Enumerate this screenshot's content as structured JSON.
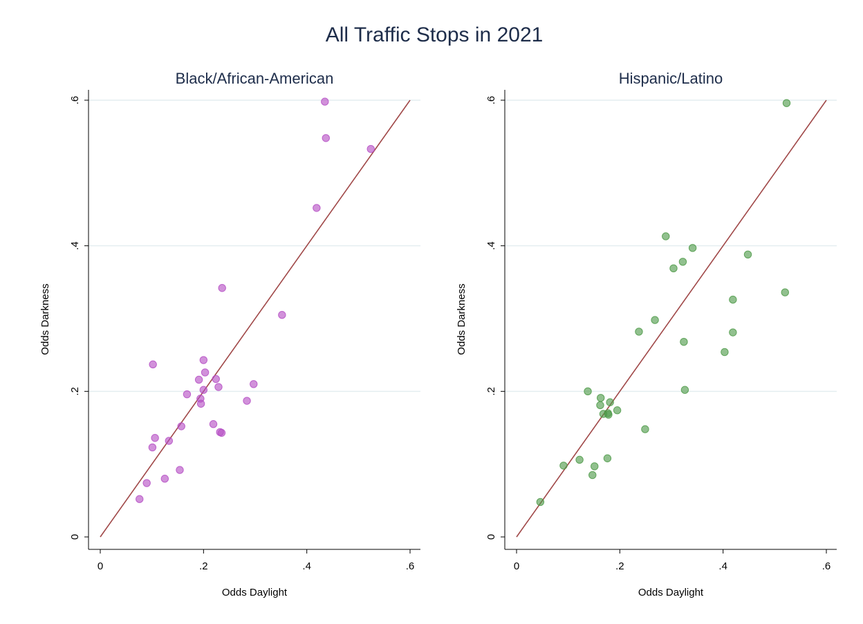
{
  "figure": {
    "title": "All Traffic Stops in 2021",
    "reference_line_color": "#a04848",
    "grid_color": "#e4eef0"
  },
  "chart_data": [
    {
      "type": "scatter",
      "title": "Black/African-American",
      "xlabel": "Odds Daylight",
      "ylabel": "Odds Darkness",
      "xlim": [
        0,
        0.6
      ],
      "ylim": [
        0,
        0.6
      ],
      "xticks": [
        0,
        0.2,
        0.4,
        0.6
      ],
      "xtick_labels": [
        "0",
        ".2",
        ".4",
        ".6"
      ],
      "yticks": [
        0,
        0.2,
        0.4,
        0.6
      ],
      "ytick_labels": [
        "0",
        ".2",
        ".4",
        ".6"
      ],
      "grid": true,
      "reference_line": {
        "from": [
          0,
          0
        ],
        "to": [
          0.6,
          0.6
        ]
      },
      "marker_color": "#b54ec4",
      "points": [
        {
          "x": 0.435,
          "y": 0.598
        },
        {
          "x": 0.437,
          "y": 0.548
        },
        {
          "x": 0.524,
          "y": 0.533
        },
        {
          "x": 0.419,
          "y": 0.452
        },
        {
          "x": 0.236,
          "y": 0.342
        },
        {
          "x": 0.352,
          "y": 0.305
        },
        {
          "x": 0.102,
          "y": 0.237
        },
        {
          "x": 0.2,
          "y": 0.243
        },
        {
          "x": 0.203,
          "y": 0.226
        },
        {
          "x": 0.191,
          "y": 0.216
        },
        {
          "x": 0.224,
          "y": 0.217
        },
        {
          "x": 0.229,
          "y": 0.206
        },
        {
          "x": 0.297,
          "y": 0.21
        },
        {
          "x": 0.2,
          "y": 0.202
        },
        {
          "x": 0.168,
          "y": 0.196
        },
        {
          "x": 0.194,
          "y": 0.19
        },
        {
          "x": 0.195,
          "y": 0.183
        },
        {
          "x": 0.284,
          "y": 0.187
        },
        {
          "x": 0.157,
          "y": 0.152
        },
        {
          "x": 0.219,
          "y": 0.155
        },
        {
          "x": 0.232,
          "y": 0.144
        },
        {
          "x": 0.235,
          "y": 0.143
        },
        {
          "x": 0.106,
          "y": 0.136
        },
        {
          "x": 0.133,
          "y": 0.132
        },
        {
          "x": 0.101,
          "y": 0.123
        },
        {
          "x": 0.154,
          "y": 0.092
        },
        {
          "x": 0.125,
          "y": 0.08
        },
        {
          "x": 0.09,
          "y": 0.074
        },
        {
          "x": 0.076,
          "y": 0.052
        }
      ]
    },
    {
      "type": "scatter",
      "title": "Hispanic/Latino",
      "xlabel": "Odds Daylight",
      "ylabel": "Odds Darkness",
      "xlim": [
        0,
        0.6
      ],
      "ylim": [
        0,
        0.6
      ],
      "xticks": [
        0,
        0.2,
        0.4,
        0.6
      ],
      "xtick_labels": [
        "0",
        ".2",
        ".4",
        ".6"
      ],
      "yticks": [
        0,
        0.2,
        0.4,
        0.6
      ],
      "ytick_labels": [
        "0",
        ".2",
        ".4",
        ".6"
      ],
      "grid": true,
      "reference_line": {
        "from": [
          0,
          0
        ],
        "to": [
          0.6,
          0.6
        ]
      },
      "marker_color": "#4e9a48",
      "points": [
        {
          "x": 0.523,
          "y": 0.596
        },
        {
          "x": 0.289,
          "y": 0.413
        },
        {
          "x": 0.341,
          "y": 0.397
        },
        {
          "x": 0.322,
          "y": 0.378
        },
        {
          "x": 0.304,
          "y": 0.369
        },
        {
          "x": 0.448,
          "y": 0.388
        },
        {
          "x": 0.52,
          "y": 0.336
        },
        {
          "x": 0.419,
          "y": 0.326
        },
        {
          "x": 0.268,
          "y": 0.298
        },
        {
          "x": 0.237,
          "y": 0.282
        },
        {
          "x": 0.324,
          "y": 0.268
        },
        {
          "x": 0.419,
          "y": 0.281
        },
        {
          "x": 0.403,
          "y": 0.254
        },
        {
          "x": 0.138,
          "y": 0.2
        },
        {
          "x": 0.326,
          "y": 0.202
        },
        {
          "x": 0.163,
          "y": 0.191
        },
        {
          "x": 0.181,
          "y": 0.185
        },
        {
          "x": 0.162,
          "y": 0.181
        },
        {
          "x": 0.195,
          "y": 0.174
        },
        {
          "x": 0.168,
          "y": 0.169
        },
        {
          "x": 0.177,
          "y": 0.17
        },
        {
          "x": 0.178,
          "y": 0.168
        },
        {
          "x": 0.249,
          "y": 0.148
        },
        {
          "x": 0.176,
          "y": 0.108
        },
        {
          "x": 0.122,
          "y": 0.106
        },
        {
          "x": 0.151,
          "y": 0.097
        },
        {
          "x": 0.091,
          "y": 0.098
        },
        {
          "x": 0.147,
          "y": 0.085
        },
        {
          "x": 0.046,
          "y": 0.048
        }
      ]
    }
  ]
}
